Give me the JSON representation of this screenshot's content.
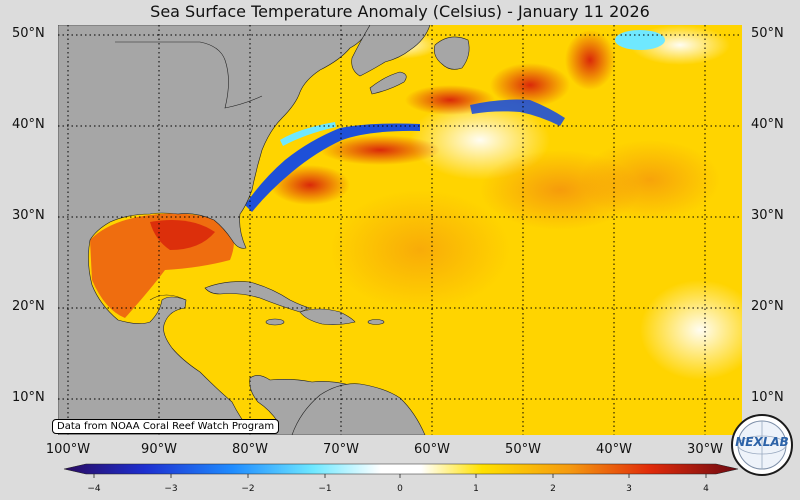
{
  "title": "Sea Surface Temperature Anomaly (Celsius) - January 11 2026",
  "latitude_labels": [
    "50°N",
    "40°N",
    "30°N",
    "20°N",
    "10°N"
  ],
  "longitude_labels": [
    "100°W",
    "90°W",
    "80°W",
    "70°W",
    "60°W",
    "50°W",
    "40°W",
    "30°W"
  ],
  "colorbar": {
    "ticks": [
      "−4",
      "−3",
      "−2",
      "−1",
      "0",
      "1",
      "2",
      "3",
      "4"
    ],
    "min": -4.5,
    "max": 4.5
  },
  "credit": "Data from NOAA Coral Reef Watch Program",
  "logo_text": "NEXLAB",
  "colors": {
    "land": "#a6a6a6",
    "ocean_warm": "#ffd400",
    "hot": "#e0400a",
    "cold": "#1e50d8"
  }
}
